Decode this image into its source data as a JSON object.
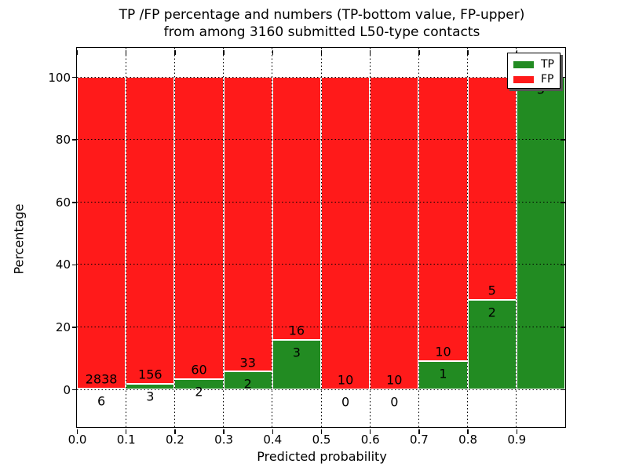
{
  "figure": {
    "title_line1": "TP /FP percentage and numbers (TP-bottom value, FP-upper)",
    "title_line2": "from among 3160 submitted L50-type contacts"
  },
  "chart_data": {
    "type": "bar",
    "subtype": "stacked-percentage-histogram",
    "title": "TP /FP percentage and numbers (TP-bottom value, FP-upper) from among 3160 submitted L50-type contacts",
    "xlabel": "Predicted probability",
    "ylabel": "Percentage",
    "total_submitted": 3160,
    "bins": [
      0.0,
      0.1,
      0.2,
      0.3,
      0.4,
      0.5,
      0.6,
      0.7,
      0.8,
      0.9
    ],
    "bin_width": 0.1,
    "xtick_labels": [
      "0.0",
      "0.1",
      "0.2",
      "0.3",
      "0.4",
      "0.5",
      "0.6",
      "0.7",
      "0.8",
      "0.9"
    ],
    "ytick_values": [
      0,
      20,
      40,
      60,
      80,
      100
    ],
    "ytick_labels": [
      "0",
      "20",
      "40",
      "60",
      "80",
      "100"
    ],
    "xlim": [
      0.0,
      1.0
    ],
    "ylim": [
      -12,
      109.5
    ],
    "grid": true,
    "grid_style": "dotted",
    "legend_position": "upper right",
    "series": [
      {
        "name": "TP",
        "color": "#228B22",
        "counts": [
          6,
          3,
          2,
          2,
          3,
          0,
          0,
          1,
          2,
          3
        ],
        "pct": [
          0.21,
          1.89,
          3.23,
          5.71,
          15.79,
          0.0,
          0.0,
          9.09,
          28.57,
          100.0
        ]
      },
      {
        "name": "FP",
        "color": "#ff1a1a",
        "counts": [
          2838,
          156,
          60,
          33,
          16,
          10,
          10,
          10,
          5,
          0
        ],
        "pct": [
          99.79,
          98.11,
          96.77,
          94.29,
          84.21,
          100.0,
          100.0,
          90.91,
          71.43,
          0.0
        ]
      }
    ]
  },
  "legend": {
    "entries": [
      {
        "label": "TP",
        "color": "#228B22"
      },
      {
        "label": "FP",
        "color": "#ff1a1a"
      }
    ]
  },
  "colors": {
    "tp": "#228B22",
    "fp": "#ff1a1a",
    "background": "#ffffff",
    "text": "#000000",
    "grid": "#000000",
    "bar_edge": "#ffffff"
  }
}
